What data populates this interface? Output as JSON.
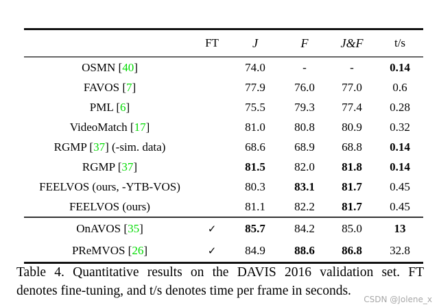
{
  "colors": {
    "citation_green": "#00DB00",
    "rule_dark": "#131313",
    "rule_gray": "#676767",
    "watermark_gray": "#a8a8a8"
  },
  "table": {
    "headers": {
      "method": "",
      "ft": "FT",
      "j": "J",
      "f": "F",
      "jf": "J&F",
      "ts": "t/s"
    },
    "rows": [
      {
        "before": "OSMN [",
        "cite": "40",
        "after": "]",
        "ft": "",
        "j": "74.0",
        "f": "-",
        "jf": "-",
        "ts": "0.14"
      },
      {
        "before": "FAVOS [",
        "cite": "7",
        "after": "]",
        "ft": "",
        "j": "77.9",
        "f": "76.0",
        "jf": "77.0",
        "ts": "0.6"
      },
      {
        "before": "PML [",
        "cite": "6",
        "after": "]",
        "ft": "",
        "j": "75.5",
        "f": "79.3",
        "jf": "77.4",
        "ts": "0.28"
      },
      {
        "before": "VideoMatch [",
        "cite": "17",
        "after": "]",
        "ft": "",
        "j": "81.0",
        "f": "80.8",
        "jf": "80.9",
        "ts": "0.32"
      },
      {
        "before": "RGMP [",
        "cite": "37",
        "after": "] (-sim. data)",
        "ft": "",
        "j": "68.6",
        "f": "68.9",
        "jf": "68.8",
        "ts": "0.14"
      },
      {
        "before": "RGMP [",
        "cite": "37",
        "after": "]",
        "ft": "",
        "j": "81.5",
        "f": "82.0",
        "jf": "81.8",
        "ts": "0.14"
      },
      {
        "before": "FEELVOS (ours, -YTB-VOS)",
        "cite": "",
        "after": "",
        "ft": "",
        "j": "80.3",
        "f": "83.1",
        "jf": "81.7",
        "ts": "0.45"
      },
      {
        "before": "FEELVOS (ours)",
        "cite": "",
        "after": "",
        "ft": "",
        "j": "81.1",
        "f": "82.2",
        "jf": "81.7",
        "ts": "0.45"
      }
    ],
    "rows_ft": [
      {
        "before": "OnAVOS [",
        "cite": "35",
        "after": "]",
        "ft": "✓",
        "j": "85.7",
        "f": "84.2",
        "jf": "85.0",
        "ts": "13"
      },
      {
        "before": "PReMVOS [",
        "cite": "26",
        "after": "]",
        "ft": "✓",
        "j": "84.9",
        "f": "88.6",
        "jf": "86.8",
        "ts": "32.8"
      }
    ]
  },
  "caption": {
    "line1": "Table 4. Quantitative results on the DAVIS 2016 validation set. FT",
    "line2": "denotes fine-tuning, and t/s denotes time per frame in seconds."
  },
  "watermark": "CSDN @Jolene_x"
}
